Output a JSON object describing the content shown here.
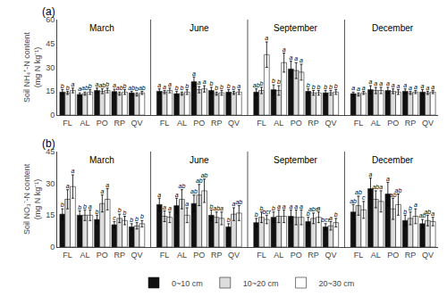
{
  "chart_data": [
    {
      "type": "bar",
      "title": "(a)",
      "ylabel": "Soil NH₄⁺-N content\n(mg N kg⁻¹)",
      "categories": [
        "FL",
        "AL",
        "PO",
        "RP",
        "QV",
        "FL",
        "AL",
        "PO",
        "RP",
        "QV",
        "FL",
        "AL",
        "PO",
        "RP",
        "QV",
        "FL",
        "AL",
        "PO",
        "RP",
        "QV"
      ],
      "annotations": [
        "March",
        "June",
        "September",
        "December"
      ],
      "series": [
        {
          "name": "0~10 cm",
          "color": "#111111",
          "values": [
            14.5,
            13.0,
            15.5,
            14.8,
            14.0,
            15.0,
            13.5,
            21.0,
            15.5,
            14.5,
            14.5,
            16.0,
            29.0,
            15.0,
            14.0,
            13.5,
            16.0,
            15.5,
            15.0,
            14.5
          ],
          "errors": [
            1.5,
            1.0,
            1.5,
            1.5,
            1.0,
            1.5,
            1.5,
            3.0,
            2.0,
            1.5,
            2.0,
            3.0,
            5.0,
            1.5,
            1.5,
            1.0,
            2.5,
            2.0,
            1.5,
            1.5
          ],
          "labels": [
            "b",
            "a",
            "a",
            "a",
            "ab",
            "a",
            "b",
            "a",
            "b",
            "b",
            "ab",
            "b",
            "a",
            "b",
            "b",
            "a",
            "a",
            "a",
            "a",
            "a"
          ]
        },
        {
          "name": "10~20 cm",
          "color": "#dddddd",
          "values": [
            14.0,
            13.5,
            15.0,
            13.5,
            13.0,
            14.5,
            13.5,
            16.0,
            13.5,
            14.0,
            15.5,
            15.5,
            28.0,
            14.0,
            14.0,
            13.0,
            15.5,
            15.0,
            14.0,
            14.0
          ],
          "errors": [
            1.0,
            1.0,
            1.5,
            1.0,
            1.0,
            1.0,
            1.0,
            2.0,
            1.0,
            1.0,
            2.0,
            3.0,
            5.0,
            1.5,
            1.5,
            1.0,
            2.0,
            1.5,
            1.0,
            1.0
          ],
          "labels": [
            "b",
            "ab",
            "ab",
            "ab",
            "b",
            "a",
            "b",
            "a",
            "b",
            "b",
            "b",
            "b",
            "a",
            "b",
            "b",
            "a",
            "a",
            "a",
            "a",
            "a"
          ]
        },
        {
          "name": "20~30 cm",
          "color": "#ffffff",
          "values": [
            15.5,
            14.5,
            15.5,
            14.5,
            14.0,
            15.5,
            14.5,
            16.5,
            14.0,
            14.5,
            38.0,
            33.0,
            27.0,
            14.0,
            14.5,
            14.0,
            15.5,
            14.5,
            14.5,
            14.5
          ],
          "errors": [
            1.5,
            1.5,
            1.5,
            1.5,
            1.0,
            1.5,
            1.5,
            2.0,
            1.5,
            1.5,
            8.0,
            6.0,
            5.0,
            1.5,
            1.5,
            1.0,
            2.0,
            1.5,
            1.0,
            1.0
          ],
          "labels": [
            "a",
            "b",
            "b",
            "b",
            "ab",
            "a",
            "b",
            "a",
            "b",
            "a",
            "a",
            "a",
            "a",
            "b",
            "b",
            "a",
            "a",
            "a",
            "a",
            "a"
          ]
        }
      ],
      "ylim": [
        0,
        60
      ],
      "yticks": [
        0,
        15,
        30,
        45,
        60
      ],
      "grid": false,
      "legend": "bottom"
    },
    {
      "type": "bar",
      "title": "(b)",
      "ylabel": "Soil NO₃⁻-N content\n(mg N kg⁻¹)",
      "categories": [
        "FL",
        "AL",
        "PO",
        "RP",
        "QV",
        "FL",
        "AL",
        "PO",
        "RP",
        "QV",
        "FL",
        "AL",
        "PO",
        "RP",
        "QV",
        "FL",
        "AL",
        "PO",
        "RP",
        "QV"
      ],
      "annotations": [
        "March",
        "June",
        "September",
        "December"
      ],
      "series": [
        {
          "name": "0~10 cm",
          "color": "#111111",
          "values": [
            15.5,
            15.0,
            13.0,
            10.5,
            9.5,
            20.0,
            19.5,
            20.5,
            15.0,
            9.5,
            11.5,
            14.0,
            14.5,
            12.0,
            9.5,
            16.5,
            27.5,
            25.0,
            12.5,
            11.0
          ],
          "errors": [
            2.5,
            2.0,
            2.0,
            1.5,
            1.5,
            3.0,
            3.5,
            4.0,
            2.5,
            1.5,
            2.0,
            2.5,
            3.0,
            2.0,
            1.5,
            3.5,
            5.0,
            5.5,
            2.5,
            2.0
          ],
          "labels": [
            "b",
            "b",
            "b",
            "c",
            "b",
            "a",
            "a",
            "ab",
            "b",
            "b",
            "b",
            "b",
            "a",
            "b",
            "bcr",
            "ab",
            "a",
            "a",
            "b",
            "ab"
          ]
        },
        {
          "name": "10~20 cm",
          "color": "#dddddd",
          "values": [
            22.5,
            15.0,
            20.5,
            13.5,
            10.0,
            14.5,
            22.5,
            24.5,
            14.0,
            15.5,
            14.0,
            14.5,
            14.0,
            13.5,
            10.0,
            19.5,
            22.5,
            18.0,
            13.5,
            12.5
          ],
          "errors": [
            4.5,
            2.5,
            4.0,
            2.0,
            1.5,
            2.5,
            4.5,
            5.0,
            2.5,
            3.0,
            2.5,
            3.0,
            3.5,
            2.5,
            2.0,
            4.5,
            4.0,
            5.0,
            3.0,
            2.5
          ],
          "labels": [
            "a",
            "b",
            "a",
            "b",
            "b",
            "a",
            "ab",
            "ab",
            "ab",
            "a",
            "b",
            "a",
            "a",
            "abc",
            "a",
            "ab",
            "ab",
            "ab",
            "b",
            "ab"
          ]
        },
        {
          "name": "20~30 cm",
          "color": "#ffffff",
          "values": [
            28.5,
            15.0,
            22.5,
            12.5,
            11.0,
            14.0,
            15.0,
            26.5,
            13.5,
            16.0,
            13.0,
            14.5,
            14.0,
            14.0,
            11.5,
            17.5,
            21.5,
            20.0,
            14.5,
            12.0
          ],
          "errors": [
            5.5,
            2.5,
            5.0,
            2.0,
            1.5,
            2.5,
            3.5,
            5.5,
            3.0,
            3.5,
            2.0,
            3.0,
            3.5,
            2.5,
            2.0,
            4.0,
            5.0,
            5.0,
            3.5,
            2.0
          ],
          "labels": [
            "a",
            "a",
            "a",
            "b",
            "b",
            "a",
            "a",
            "ab",
            "a",
            "ab",
            "bcr",
            "a",
            "a",
            "a",
            "b",
            "c",
            "a",
            "ab",
            "a",
            "a"
          ]
        }
      ],
      "ylim": [
        0,
        45
      ],
      "yticks": [
        0,
        15,
        30,
        45
      ],
      "grid": false
    }
  ]
}
